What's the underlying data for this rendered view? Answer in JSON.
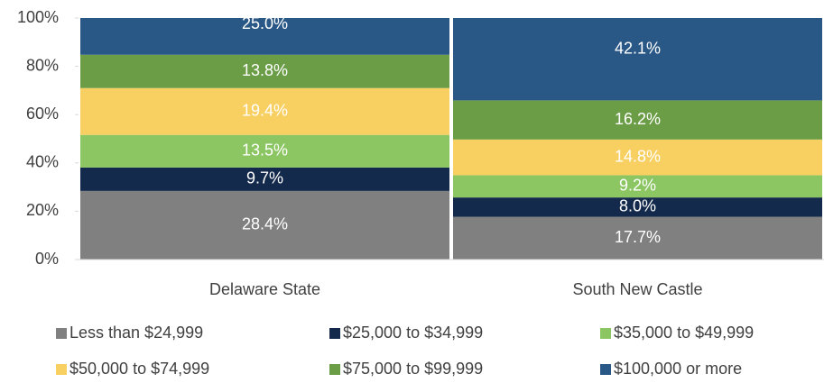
{
  "chart_data": {
    "type": "stacked_bar",
    "categories": [
      "Delaware State",
      "South New Castle"
    ],
    "series": [
      {
        "name": "Less than $24,999",
        "color": "#808080",
        "values": [
          28.4,
          17.7
        ],
        "value_labels": [
          "28.4%",
          "17.7%"
        ]
      },
      {
        "name": "$25,000 to $34,999",
        "color": "#142a4c",
        "values": [
          9.7,
          8.0
        ],
        "value_labels": [
          "9.7%",
          "8.0%"
        ]
      },
      {
        "name": "$35,000 to $49,999",
        "color": "#8bc662",
        "values": [
          13.5,
          9.2
        ],
        "value_labels": [
          "13.5%",
          "9.2%"
        ]
      },
      {
        "name": "$50,000 to $74,999",
        "color": "#f8cf61",
        "values": [
          19.4,
          14.8
        ],
        "value_labels": [
          "19.4%",
          "14.8%"
        ]
      },
      {
        "name": "$75,000 to $99,999",
        "color": "#6b9d47",
        "values": [
          13.8,
          16.2
        ],
        "value_labels": [
          "13.8%",
          "16.2%"
        ]
      },
      {
        "name": "$100,000 or more",
        "color": "#2a5886",
        "values": [
          25.0,
          42.1
        ],
        "value_labels": [
          "25.0%",
          "42.1%"
        ]
      }
    ],
    "ylim": [
      0,
      100
    ],
    "yticks": [
      {
        "value": 0,
        "label": "0%"
      },
      {
        "value": 20,
        "label": "20%"
      },
      {
        "value": 40,
        "label": "40%"
      },
      {
        "value": 60,
        "label": "60%"
      },
      {
        "value": 80,
        "label": "80%"
      },
      {
        "value": 100,
        "label": "100%"
      }
    ],
    "legend": "bottom"
  }
}
